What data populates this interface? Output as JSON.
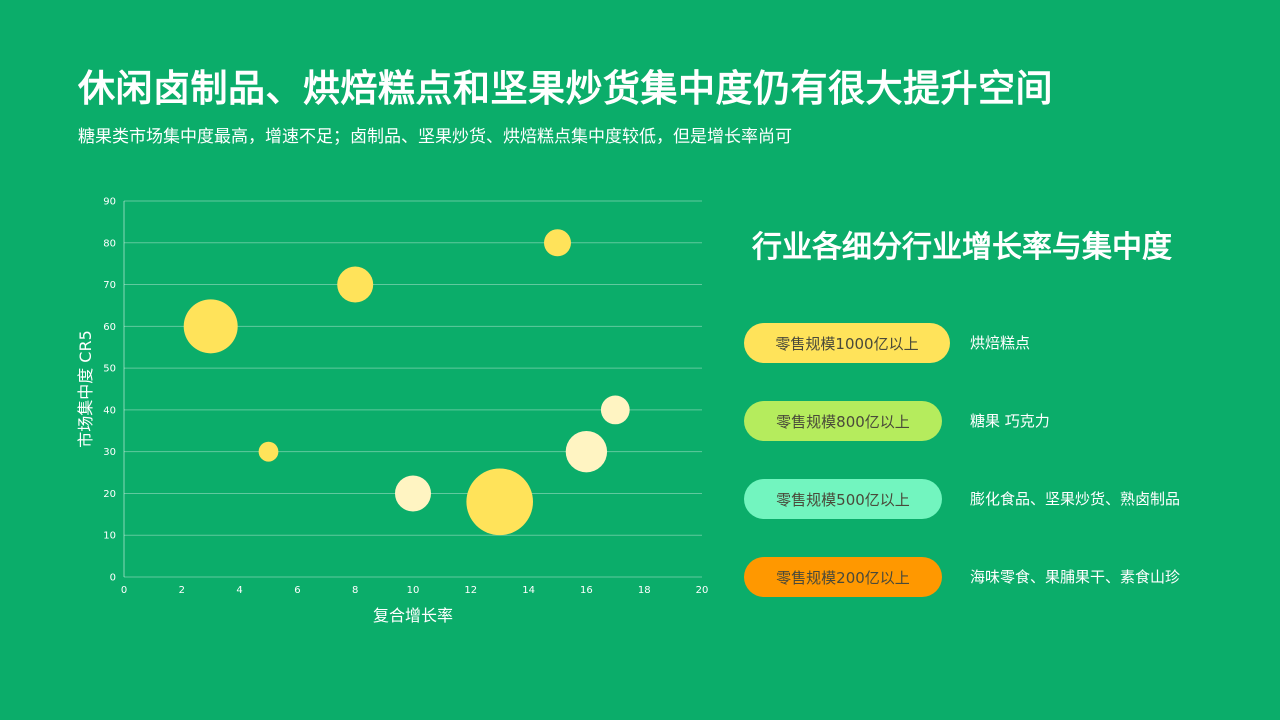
{
  "header": {
    "title": "休闲卤制品、烘焙糕点和坚果炒货集中度仍有很大提升空间",
    "subtitle": "糖果类市场集中度最高，增速不足；卤制品、坚果炒货、烘焙糕点集中度较低，但是增长率尚可"
  },
  "chart_data": {
    "type": "bubble",
    "xlabel": "复合增长率",
    "ylabel": "市场集中度  CR5",
    "xlim": [
      0,
      20
    ],
    "ylim": [
      0,
      90
    ],
    "xticks": [
      "0",
      "2",
      "4",
      "6",
      "8",
      "10",
      "12",
      "14",
      "16",
      "18",
      "20"
    ],
    "yticks": [
      "0",
      "10",
      "20",
      "30",
      "40",
      "50",
      "60",
      "70",
      "80",
      "90"
    ],
    "grid": true,
    "points": [
      {
        "x": 3,
        "y": 60,
        "size": 1.5,
        "color": "#ffe35a"
      },
      {
        "x": 5,
        "y": 30,
        "size": 0.55,
        "color": "#ffe35a"
      },
      {
        "x": 8,
        "y": 70,
        "size": 1.0,
        "color": "#ffe35a"
      },
      {
        "x": 10,
        "y": 20,
        "size": 1.0,
        "color": "#fff4c2"
      },
      {
        "x": 13,
        "y": 18,
        "size": 1.85,
        "color": "#ffe35a"
      },
      {
        "x": 15,
        "y": 80,
        "size": 0.75,
        "color": "#ffe35a"
      },
      {
        "x": 16,
        "y": 30,
        "size": 1.15,
        "color": "#fff4c2"
      },
      {
        "x": 17,
        "y": 40,
        "size": 0.8,
        "color": "#fff4c2"
      }
    ]
  },
  "legend": {
    "title": "行业各细分行业增长率与集中度",
    "items": [
      {
        "label": "零售规模1000亿以上",
        "categories": "烘焙糕点",
        "color": "#ffe35a"
      },
      {
        "label": "零售规模800亿以上",
        "categories": "糖果 巧克力",
        "color": "#b5ec5d"
      },
      {
        "label": "零售规模500亿以上",
        "categories": "膨化食品、坚果炒货、熟卤制品",
        "color": "#72f5bf"
      },
      {
        "label": "零售规模200亿以上",
        "categories": "海味零食、果脯果干、素食山珍",
        "color": "#ff9800"
      }
    ]
  }
}
